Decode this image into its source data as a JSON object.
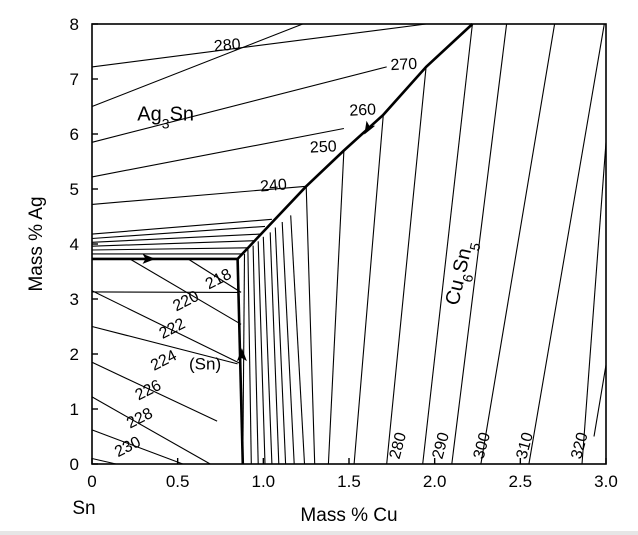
{
  "chart_data": {
    "type": "line",
    "title": "",
    "xlabel": "Mass % Cu",
    "ylabel": "Mass % Ag",
    "xlim": [
      0,
      3.0
    ],
    "ylim": [
      0,
      8
    ],
    "x_ticks": [
      "0",
      "0.5",
      "1.0",
      "1.5",
      "2.0",
      "2.5",
      "3.0"
    ],
    "x_tick_values": [
      0,
      0.5,
      1.0,
      1.5,
      2.0,
      2.5,
      3.0
    ],
    "y_ticks": [
      "0",
      "1",
      "2",
      "3",
      "4",
      "5",
      "6",
      "7",
      "8"
    ],
    "y_tick_values": [
      0,
      1,
      2,
      3,
      4,
      5,
      6,
      7,
      8
    ],
    "corner_label": "Sn",
    "grid": false,
    "phase_labels": [
      {
        "text": "Ag",
        "sub": "3",
        "tail": "Sn",
        "x": 0.43,
        "y": 6.25,
        "rotate": 0
      },
      {
        "text": "Cu",
        "sub": "6",
        "tail": "Sn",
        "sub2": "5",
        "x": 2.18,
        "y": 3.45,
        "rotate": -77
      },
      {
        "text": "(Sn)",
        "x": 0.66,
        "y": 1.72,
        "rotate": 0
      }
    ],
    "isotherm_labels": [
      {
        "text": "280",
        "x": 0.79,
        "y": 7.6,
        "rotate": -5
      },
      {
        "text": "270",
        "x": 1.82,
        "y": 7.25,
        "rotate": -3
      },
      {
        "text": "260",
        "x": 1.58,
        "y": 6.42,
        "rotate": -3
      },
      {
        "text": "250",
        "x": 1.35,
        "y": 5.75,
        "rotate": -3
      },
      {
        "text": "240",
        "x": 1.06,
        "y": 5.05,
        "rotate": -5
      },
      {
        "text": "218",
        "x": 0.74,
        "y": 3.35,
        "rotate": -27
      },
      {
        "text": "220",
        "x": 0.55,
        "y": 2.95,
        "rotate": -27
      },
      {
        "text": "222",
        "x": 0.47,
        "y": 2.45,
        "rotate": -27
      },
      {
        "text": "224",
        "x": 0.42,
        "y": 1.87,
        "rotate": -27
      },
      {
        "text": "226",
        "x": 0.33,
        "y": 1.33,
        "rotate": -27
      },
      {
        "text": "228",
        "x": 0.28,
        "y": 0.82,
        "rotate": -27
      },
      {
        "text": "230",
        "x": 0.21,
        "y": 0.3,
        "rotate": -27
      },
      {
        "text": "280",
        "x": 1.79,
        "y": 0.33,
        "rotate": -75
      },
      {
        "text": "290",
        "x": 2.04,
        "y": 0.33,
        "rotate": -75
      },
      {
        "text": "300",
        "x": 2.28,
        "y": 0.33,
        "rotate": -75
      },
      {
        "text": "310",
        "x": 2.53,
        "y": 0.33,
        "rotate": -75
      },
      {
        "text": "320",
        "x": 2.85,
        "y": 0.33,
        "rotate": -75
      }
    ],
    "boundaries": [
      {
        "name": "",
        "points": [
          [
            0,
            3.73
          ],
          [
            0.85,
            3.73
          ]
        ]
      },
      {
        "name": "",
        "points": [
          [
            0.85,
            3.73
          ],
          [
            0.88,
            0
          ]
        ]
      },
      {
        "name": "",
        "points": [
          [
            0.85,
            3.73
          ],
          [
            1.25,
            5.05
          ],
          [
            1.47,
            5.7
          ],
          [
            1.7,
            6.35
          ],
          [
            1.95,
            7.22
          ],
          [
            2.22,
            8.0
          ]
        ]
      }
    ],
    "arrows": [
      {
        "x": 0.33,
        "y": 3.73,
        "dir": "right"
      },
      {
        "x": 0.875,
        "y": 1.98,
        "dir": "up"
      },
      {
        "x": 1.61,
        "y": 6.1,
        "dir": "down-left"
      }
    ],
    "isotherms": [
      {
        "points": [
          [
            0,
            7.22
          ],
          [
            1.95,
            8.0
          ]
        ]
      },
      {
        "points": [
          [
            0,
            6.5
          ],
          [
            1.23,
            8.0
          ]
        ]
      },
      {
        "points": [
          [
            0,
            5.85
          ],
          [
            1.72,
            7.22
          ]
        ]
      },
      {
        "points": [
          [
            0,
            5.22
          ],
          [
            1.47,
            6.1
          ]
        ]
      },
      {
        "points": [
          [
            0,
            4.72
          ],
          [
            1.25,
            5.05
          ]
        ]
      },
      {
        "points": [
          [
            0,
            4.18
          ],
          [
            1.05,
            4.45
          ]
        ]
      },
      {
        "points": [
          [
            0,
            4.1
          ],
          [
            1.01,
            4.32
          ]
        ]
      },
      {
        "points": [
          [
            0,
            4.03
          ],
          [
            0.98,
            4.18
          ]
        ]
      },
      {
        "points": [
          [
            0,
            3.96
          ],
          [
            0.95,
            4.06
          ]
        ]
      },
      {
        "points": [
          [
            0,
            3.89
          ],
          [
            0.91,
            3.93
          ]
        ]
      },
      {
        "points": [
          [
            0,
            3.82
          ],
          [
            0.88,
            3.82
          ]
        ]
      },
      {
        "points": [
          [
            0,
            3.13
          ],
          [
            0.85,
            3.12
          ]
        ]
      },
      {
        "points": [
          [
            0,
            2.5
          ],
          [
            0.85,
            1.82
          ]
        ]
      },
      {
        "points": [
          [
            0,
            1.85
          ],
          [
            0.73,
            0.78
          ]
        ]
      },
      {
        "points": [
          [
            0,
            1.22
          ],
          [
            0.69,
            0
          ]
        ]
      },
      {
        "points": [
          [
            0,
            0.62
          ],
          [
            0.53,
            0
          ]
        ]
      },
      {
        "points": [
          [
            0,
            0.1
          ],
          [
            0.14,
            0
          ]
        ]
      },
      {
        "points": [
          [
            0.87,
            3.12
          ],
          [
            0.56,
            3.73
          ]
        ]
      },
      {
        "points": [
          [
            0.87,
            2.54
          ],
          [
            0.22,
            3.73
          ]
        ]
      },
      {
        "points": [
          [
            0.87,
            1.82
          ],
          [
            0.0,
            3.15
          ]
        ]
      },
      {
        "points": [
          [
            0.88,
            0
          ],
          [
            0.89,
            3.82
          ]
        ]
      },
      {
        "points": [
          [
            0.93,
            0
          ],
          [
            0.91,
            3.9
          ]
        ]
      },
      {
        "points": [
          [
            0.97,
            0
          ],
          [
            0.94,
            3.97
          ]
        ]
      },
      {
        "points": [
          [
            1.01,
            0
          ],
          [
            0.97,
            4.05
          ]
        ]
      },
      {
        "points": [
          [
            1.05,
            0
          ],
          [
            1.0,
            4.13
          ]
        ]
      },
      {
        "points": [
          [
            1.09,
            0
          ],
          [
            1.04,
            4.21
          ]
        ]
      },
      {
        "points": [
          [
            1.13,
            0
          ],
          [
            1.07,
            4.3
          ]
        ]
      },
      {
        "points": [
          [
            1.18,
            0
          ],
          [
            1.11,
            4.4
          ]
        ]
      },
      {
        "points": [
          [
            1.24,
            0
          ],
          [
            1.16,
            4.52
          ]
        ]
      },
      {
        "points": [
          [
            1.3,
            0
          ],
          [
            1.25,
            5.05
          ]
        ]
      },
      {
        "points": [
          [
            1.38,
            0
          ],
          [
            1.47,
            5.7
          ]
        ]
      },
      {
        "points": [
          [
            1.53,
            0
          ],
          [
            1.7,
            6.35
          ]
        ]
      },
      {
        "points": [
          [
            1.72,
            0
          ],
          [
            1.95,
            7.22
          ]
        ]
      },
      {
        "points": [
          [
            1.93,
            0
          ],
          [
            2.22,
            8.0
          ]
        ]
      },
      {
        "points": [
          [
            2.1,
            0
          ],
          [
            2.42,
            8.0
          ]
        ]
      },
      {
        "points": [
          [
            2.27,
            0
          ],
          [
            2.7,
            8.0
          ]
        ]
      },
      {
        "points": [
          [
            2.55,
            0
          ],
          [
            2.99,
            8.0
          ]
        ]
      },
      {
        "points": [
          [
            2.86,
            0
          ],
          [
            3.0,
            5.85
          ]
        ]
      },
      {
        "points": [
          [
            2.93,
            0.5
          ],
          [
            3.0,
            1.8
          ]
        ]
      }
    ]
  }
}
